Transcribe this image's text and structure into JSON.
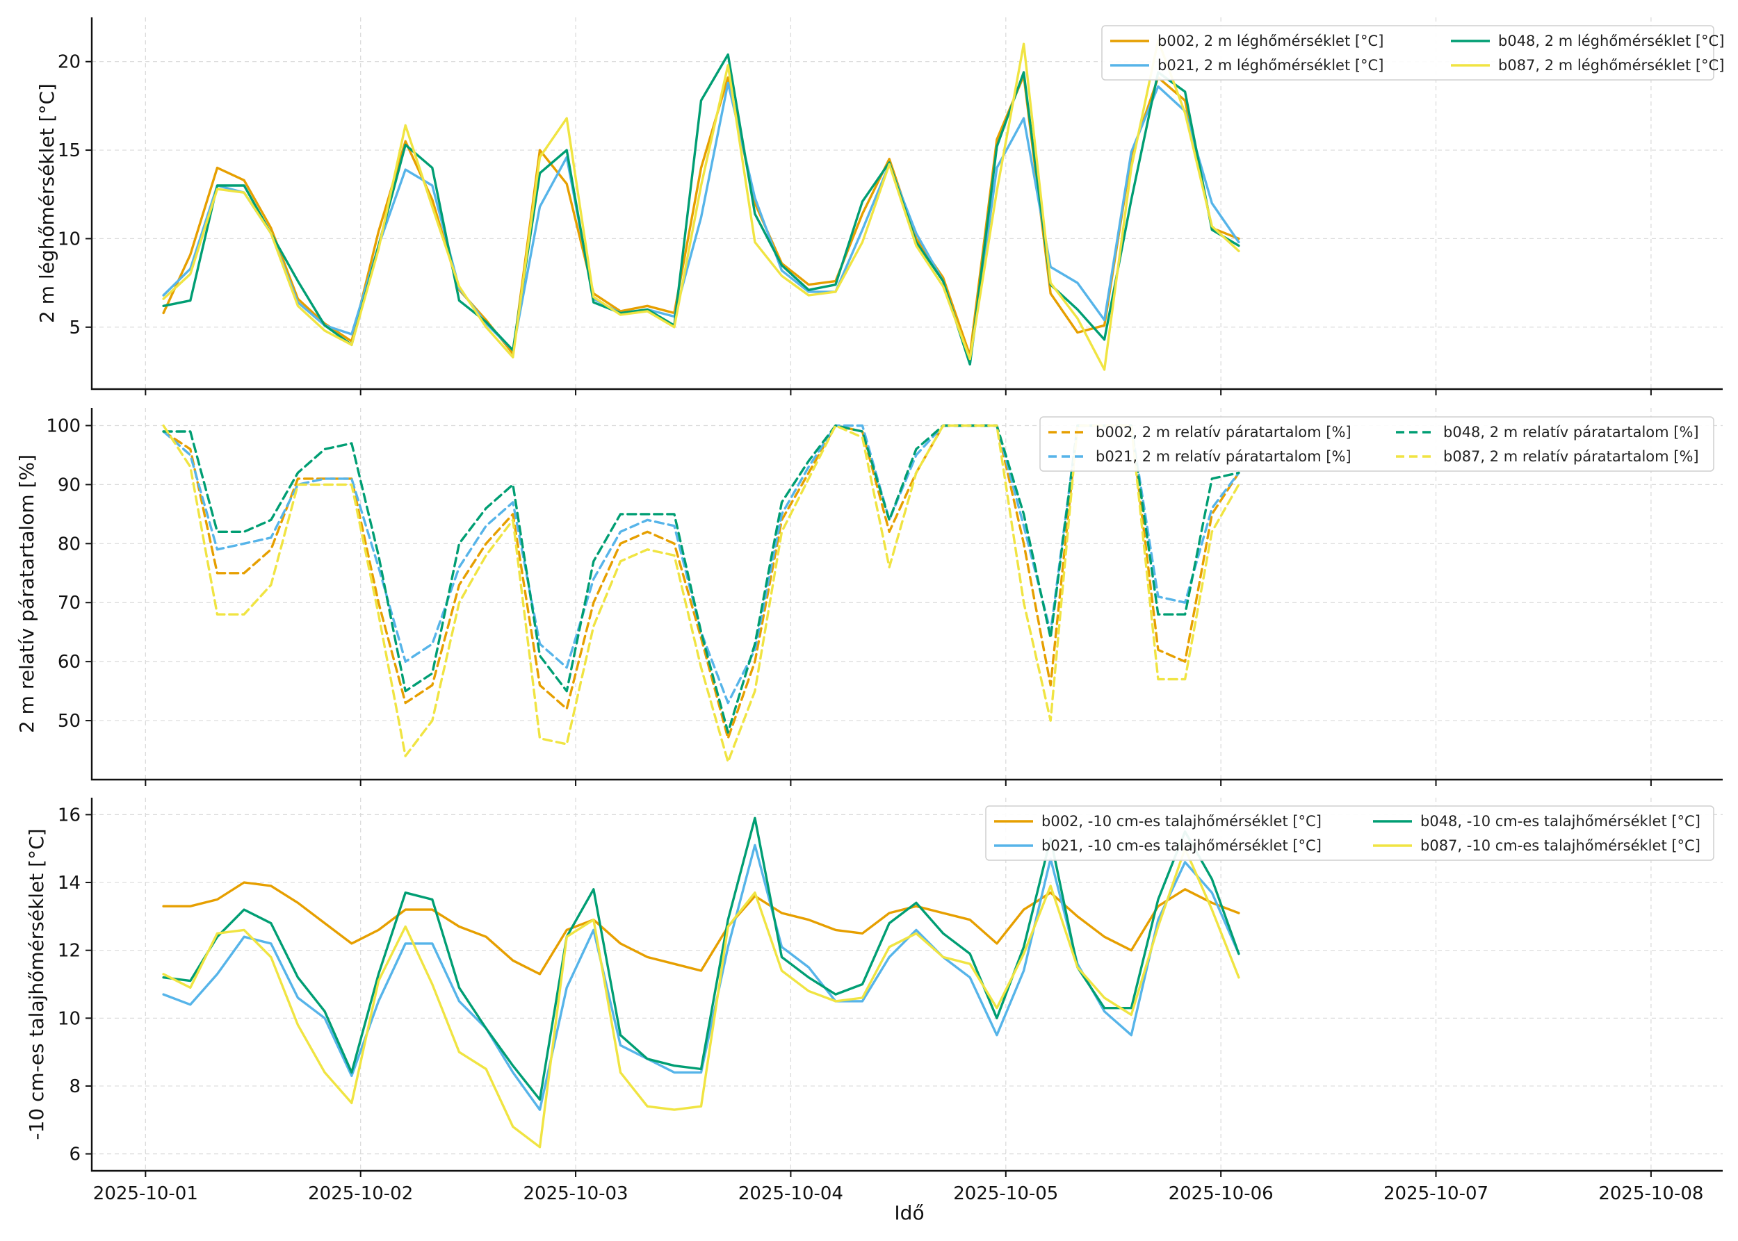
{
  "figure": {
    "xlabel": "Idő",
    "x_ticks": [
      "2025-10-01",
      "2025-10-02",
      "2025-10-03",
      "2025-10-04",
      "2025-10-05",
      "2025-10-06",
      "2025-10-07",
      "2025-10-08"
    ]
  },
  "chart_data": [
    {
      "type": "line",
      "ylabel": "2 m léghőmérséklet [°C]",
      "xlim": [
        "2025-09-30T18:00",
        "2025-10-08T08:00"
      ],
      "ylim": [
        1.5,
        22.5
      ],
      "y_ticks": [
        5,
        10,
        15,
        20
      ],
      "x_start": "2025-10-01T02:00",
      "x_step_hours": 3,
      "line_style": "solid",
      "grid": true,
      "legend": {
        "placement": "top-right",
        "columns": 2
      },
      "series": [
        {
          "name": "b002, 2 m léghőmérséklet [°C]",
          "color": "#E69F00",
          "values": [
            5.8,
            9.1,
            14.0,
            13.3,
            10.6,
            6.6,
            5.2,
            4.2,
            10.4,
            15.5,
            12.2,
            7.1,
            5.4,
            3.5,
            15.0,
            13.1,
            6.9,
            5.9,
            6.2,
            5.8,
            14.0,
            19.1,
            12.0,
            8.6,
            7.4,
            7.6,
            11.4,
            14.5,
            10.0,
            7.8,
            3.4,
            15.6,
            19.2,
            6.9,
            4.7,
            5.1,
            14.7,
            19.1,
            17.8,
            10.6,
            10.0
          ]
        },
        {
          "name": "b021, 2 m léghőmérséklet [°C]",
          "color": "#56B4E9",
          "values": [
            6.8,
            8.3,
            13.0,
            12.6,
            10.3,
            6.4,
            5.1,
            4.6,
            9.6,
            13.9,
            13.0,
            7.2,
            5.2,
            3.7,
            11.8,
            14.6,
            6.6,
            5.8,
            6.0,
            5.6,
            11.2,
            18.8,
            12.3,
            8.2,
            7.0,
            7.0,
            10.5,
            14.2,
            10.3,
            7.6,
            2.9,
            14.0,
            16.8,
            8.4,
            7.5,
            5.4,
            14.9,
            18.6,
            17.2,
            12.0,
            9.8
          ]
        },
        {
          "name": "b048, 2 m léghőmérséklet [°C]",
          "color": "#009E73",
          "values": [
            6.2,
            6.5,
            13.0,
            13.0,
            10.3,
            7.6,
            5.1,
            4.0,
            9.6,
            15.3,
            14.0,
            6.5,
            5.3,
            3.7,
            13.7,
            15.0,
            6.4,
            5.8,
            6.0,
            5.1,
            17.8,
            20.4,
            11.4,
            8.5,
            7.1,
            7.4,
            12.1,
            14.3,
            9.8,
            7.6,
            2.9,
            15.2,
            19.4,
            7.4,
            6.0,
            4.3,
            12.2,
            19.4,
            18.3,
            10.5,
            9.6
          ]
        },
        {
          "name": "b087, 2 m léghőmérséklet [°C]",
          "color": "#F0E442",
          "values": [
            6.6,
            8.0,
            12.8,
            12.6,
            10.3,
            6.2,
            4.8,
            4.0,
            9.4,
            16.4,
            11.8,
            7.3,
            5.0,
            3.3,
            14.6,
            16.8,
            6.7,
            5.7,
            5.9,
            5.0,
            13.0,
            19.8,
            9.8,
            7.9,
            6.8,
            7.0,
            9.8,
            14.2,
            9.6,
            7.3,
            3.2,
            12.7,
            21.0,
            7.5,
            5.5,
            2.6,
            14.0,
            21.2,
            17.1,
            10.7,
            9.3
          ]
        }
      ]
    },
    {
      "type": "line",
      "ylabel": "2 m relatív páratartalom [%]",
      "xlim": [
        "2025-09-30T18:00",
        "2025-10-08T08:00"
      ],
      "ylim": [
        40,
        103
      ],
      "y_ticks": [
        50,
        60,
        70,
        80,
        90,
        100
      ],
      "x_start": "2025-10-01T02:00",
      "x_step_hours": 3,
      "line_style": "dashed",
      "grid": true,
      "legend": {
        "placement": "top-right",
        "columns": 2
      },
      "series": [
        {
          "name": "b002, 2 m relatív páratartalom [%]",
          "color": "#E69F00",
          "values": [
            99,
            96,
            75,
            75,
            79,
            91,
            91,
            91,
            70,
            53,
            56,
            73,
            80,
            85,
            56,
            52,
            70,
            80,
            82,
            80,
            64,
            47,
            60,
            84,
            92,
            100,
            99,
            82,
            92,
            100,
            100,
            100,
            80,
            56,
            100,
            100,
            100,
            62,
            60,
            85,
            92
          ]
        },
        {
          "name": "b021, 2 m relatív páratartalom [%]",
          "color": "#56B4E9",
          "values": [
            99,
            95,
            79,
            80,
            81,
            90,
            91,
            91,
            76,
            60,
            63,
            76,
            83,
            87,
            63,
            59,
            74,
            82,
            84,
            83,
            65,
            53,
            62,
            85,
            93,
            100,
            100,
            84,
            95,
            100,
            100,
            100,
            83,
            65,
            100,
            100,
            100,
            71,
            70,
            86,
            92
          ]
        },
        {
          "name": "b048, 2 m relatív páratartalom [%]",
          "color": "#009E73",
          "values": [
            99,
            99,
            82,
            82,
            84,
            92,
            96,
            97,
            78,
            55,
            58,
            80,
            86,
            90,
            61,
            55,
            77,
            85,
            85,
            85,
            65,
            48,
            63,
            87,
            94,
            100,
            99,
            84,
            96,
            100,
            100,
            100,
            85,
            64,
            100,
            100,
            100,
            68,
            68,
            91,
            92
          ]
        },
        {
          "name": "b087, 2 m relatív páratartalom [%]",
          "color": "#F0E442",
          "values": [
            100,
            93,
            68,
            68,
            73,
            90,
            90,
            90,
            68,
            44,
            50,
            70,
            78,
            84,
            47,
            46,
            66,
            77,
            79,
            78,
            59,
            43,
            55,
            82,
            91,
            100,
            98,
            76,
            92,
            100,
            100,
            100,
            70,
            50,
            100,
            100,
            100,
            57,
            57,
            82,
            90
          ]
        }
      ]
    },
    {
      "type": "line",
      "ylabel": "-10 cm-es talajhőmérséklet [°C]",
      "xlim": [
        "2025-09-30T18:00",
        "2025-10-08T08:00"
      ],
      "ylim": [
        5.5,
        16.5
      ],
      "y_ticks": [
        6,
        8,
        10,
        12,
        14,
        16
      ],
      "x_start": "2025-10-01T02:00",
      "x_step_hours": 3,
      "line_style": "solid",
      "grid": true,
      "legend": {
        "placement": "top-right",
        "columns": 2
      },
      "series": [
        {
          "name": "b002, -10 cm-es talajhőmérséklet [°C]",
          "color": "#E69F00",
          "values": [
            13.3,
            13.3,
            13.5,
            14.0,
            13.9,
            13.4,
            12.8,
            12.2,
            12.6,
            13.2,
            13.2,
            12.7,
            12.4,
            11.7,
            11.3,
            12.6,
            12.9,
            12.2,
            11.8,
            11.6,
            11.4,
            12.7,
            13.6,
            13.1,
            12.9,
            12.6,
            12.5,
            13.1,
            13.3,
            13.1,
            12.9,
            12.2,
            13.2,
            13.7,
            13.0,
            12.4,
            12.0,
            13.3,
            13.8,
            13.4,
            13.1
          ]
        },
        {
          "name": "b021, -10 cm-es talajhőmérséklet [°C]",
          "color": "#56B4E9",
          "values": [
            10.7,
            10.4,
            11.3,
            12.4,
            12.2,
            10.6,
            10.0,
            8.3,
            10.5,
            12.2,
            12.2,
            10.5,
            9.7,
            8.4,
            7.3,
            10.9,
            12.6,
            9.2,
            8.8,
            8.4,
            8.4,
            12.1,
            15.1,
            12.1,
            11.5,
            10.5,
            10.5,
            11.8,
            12.6,
            11.8,
            11.2,
            9.5,
            11.4,
            14.7,
            11.6,
            10.2,
            9.5,
            12.9,
            14.6,
            13.7,
            11.9
          ]
        },
        {
          "name": "b048, -10 cm-es talajhőmérséklet [°C]",
          "color": "#009E73",
          "values": [
            11.2,
            11.1,
            12.4,
            13.2,
            12.8,
            11.2,
            10.2,
            8.4,
            11.3,
            13.7,
            13.5,
            10.9,
            9.7,
            8.6,
            7.6,
            12.4,
            13.8,
            9.5,
            8.8,
            8.6,
            8.5,
            12.9,
            15.9,
            11.8,
            11.2,
            10.7,
            11.0,
            12.8,
            13.4,
            12.5,
            11.9,
            10.0,
            12.1,
            15.3,
            11.5,
            10.3,
            10.3,
            13.5,
            15.5,
            14.1,
            11.9
          ]
        },
        {
          "name": "b087, -10 cm-es talajhőmérséklet [°C]",
          "color": "#F0E442",
          "values": [
            11.3,
            10.9,
            12.5,
            12.6,
            11.8,
            9.8,
            8.4,
            7.5,
            11.1,
            12.7,
            11.0,
            9.0,
            8.5,
            6.8,
            6.2,
            12.4,
            12.9,
            8.4,
            7.4,
            7.3,
            7.4,
            12.7,
            13.7,
            11.4,
            10.8,
            10.5,
            10.6,
            12.1,
            12.5,
            11.8,
            11.6,
            10.3,
            11.9,
            13.9,
            11.5,
            10.6,
            10.1,
            12.7,
            15.0,
            13.2,
            11.2
          ]
        }
      ]
    }
  ]
}
